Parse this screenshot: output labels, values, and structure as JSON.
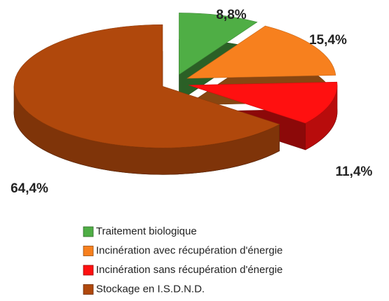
{
  "chart_data": {
    "type": "pie",
    "categories": [
      "Traitement biologique",
      "Incinération avec récupération d'énergie",
      "Incinération sans récupération d'énergie",
      "Stockage en I.S.D.N.D."
    ],
    "values": [
      8.8,
      15.4,
      11.4,
      64.4
    ],
    "value_labels": [
      "8,8%",
      "15,4%",
      "11,4%",
      "64,4%"
    ],
    "colors": [
      "#4fae45",
      "#f7801e",
      "#ff1010",
      "#b0480c"
    ],
    "legend": "bottom"
  }
}
